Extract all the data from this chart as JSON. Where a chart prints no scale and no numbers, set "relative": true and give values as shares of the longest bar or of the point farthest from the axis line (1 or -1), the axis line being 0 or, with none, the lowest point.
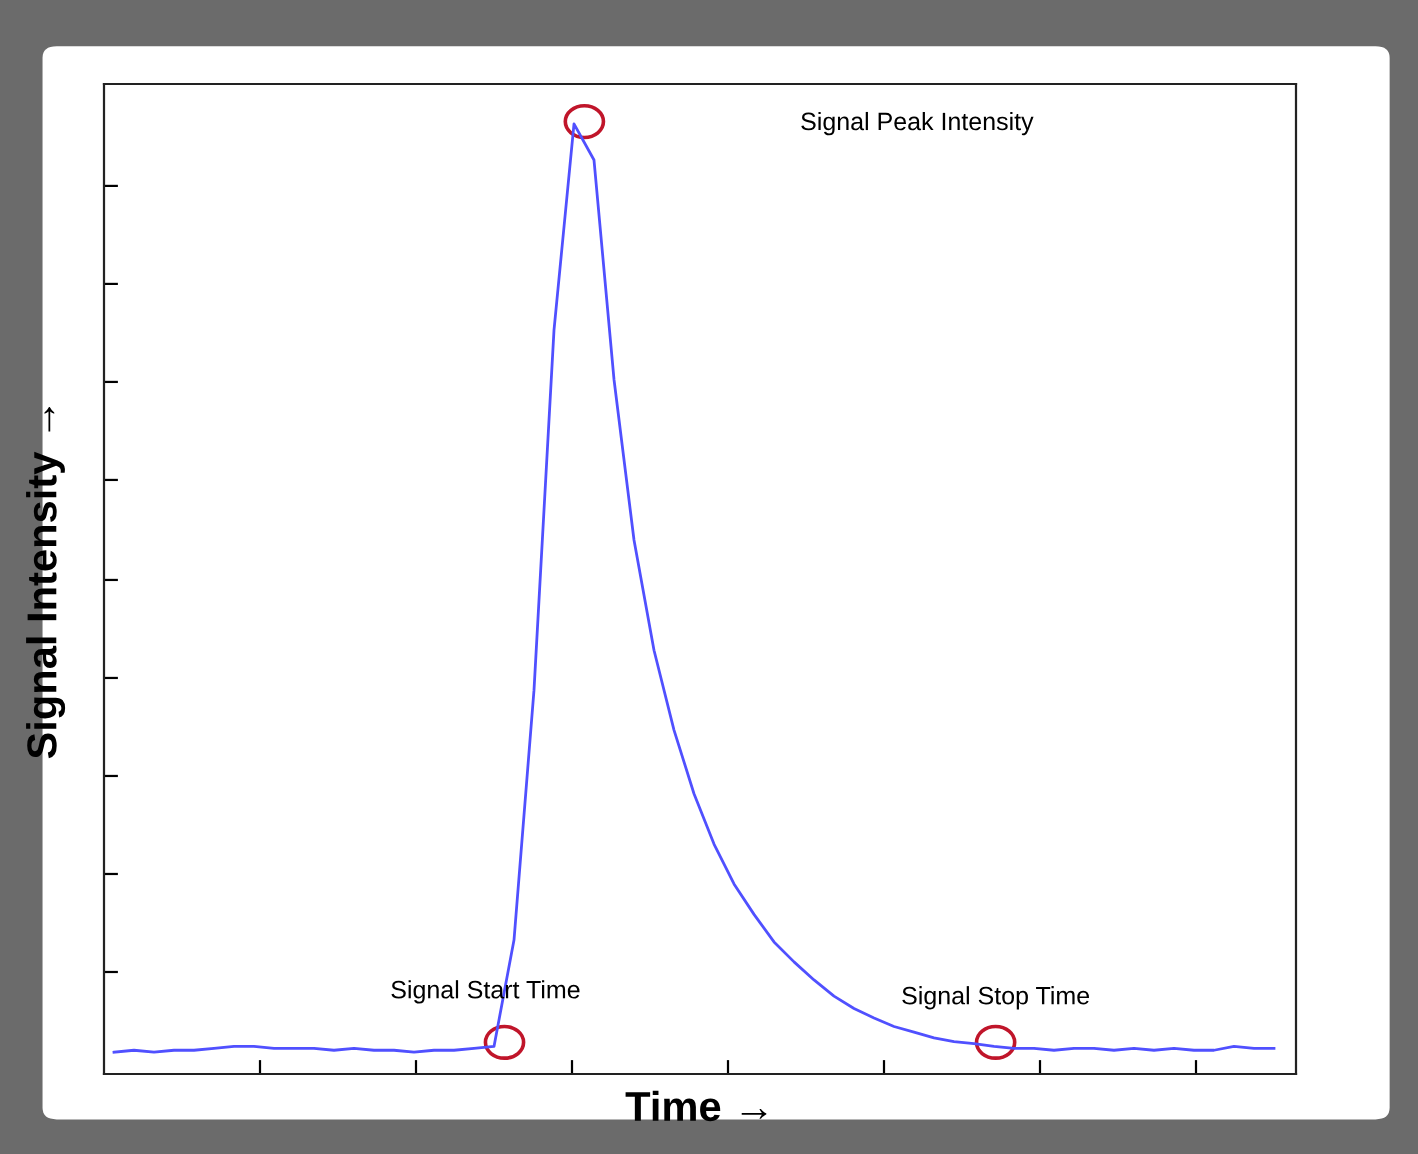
{
  "chart_data": {
    "type": "line",
    "relative": true,
    "xlabel": "Time →",
    "ylabel": "Signal Intensity →",
    "categories": [
      null,
      null,
      null,
      null,
      null,
      null,
      null,
      null,
      null,
      null,
      null,
      null,
      null,
      null,
      null,
      null,
      null,
      null,
      null,
      null,
      null,
      null,
      null,
      null,
      null,
      null,
      null,
      null,
      null,
      null,
      null,
      null,
      null,
      null,
      null,
      null,
      null,
      null,
      null,
      null,
      null,
      null,
      null,
      null,
      null,
      null,
      null,
      null,
      null,
      null,
      null,
      null,
      null,
      null,
      null,
      null,
      null,
      null,
      null
    ],
    "series": [
      {
        "color": "#5050ff",
        "values": [
          0.023,
          0.025,
          0.023,
          0.025,
          0.025,
          0.027,
          0.029,
          0.029,
          0.027,
          0.027,
          0.027,
          0.025,
          0.027,
          0.025,
          0.025,
          0.023,
          0.025,
          0.025,
          0.027,
          0.029,
          0.141,
          0.404,
          0.783,
          1,
          0.962,
          0.731,
          0.562,
          0.446,
          0.362,
          0.295,
          0.242,
          0.2,
          0.168,
          0.139,
          0.118,
          0.099,
          0.082,
          0.069,
          0.059,
          0.05,
          0.044,
          0.038,
          0.034,
          0.032,
          0.029,
          0.027,
          0.027,
          0.025,
          0.027,
          0.027,
          0.025,
          0.027,
          0.025,
          0.027,
          0.025,
          0.025,
          0.029,
          0.027,
          0.027
        ]
      }
    ],
    "annotations": [
      "Signal Peak Intensity",
      "Signal Start Time",
      "Signal Stop Time"
    ],
    "tick_labels": false,
    "marker": "none",
    "line_style": "solid"
  }
}
